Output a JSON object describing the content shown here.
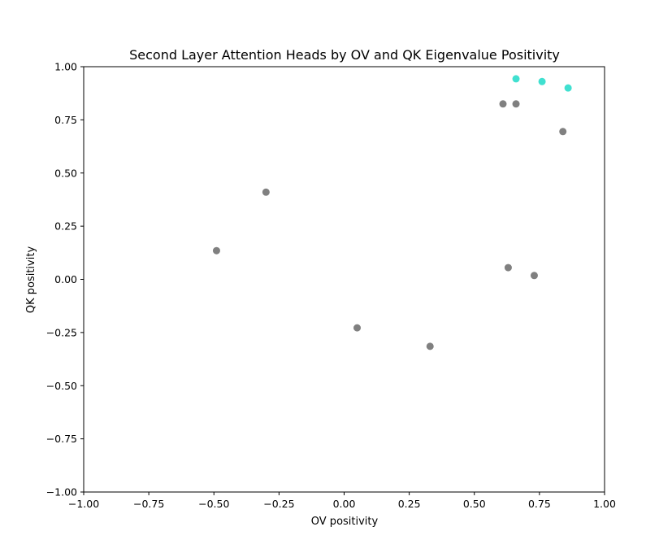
{
  "chart_data": {
    "type": "scatter",
    "title": "Second Layer Attention Heads by OV and QK Eigenvalue Positivity",
    "xlabel": "OV positivity",
    "ylabel": "QK positivity",
    "xlim": [
      -1.0,
      1.0
    ],
    "ylim": [
      -1.0,
      1.0
    ],
    "xticks": [
      "−1.00",
      "−0.75",
      "−0.50",
      "−0.25",
      "0.00",
      "0.25",
      "0.50",
      "0.75",
      "1.00"
    ],
    "yticks": [
      "−1.00",
      "−0.75",
      "−0.50",
      "−0.25",
      "0.00",
      "0.25",
      "0.50",
      "0.75",
      "1.00"
    ],
    "grid": false,
    "colors": {
      "highlight": "#40e0d0",
      "default": "#808080"
    },
    "points": [
      {
        "x": 0.66,
        "y": 0.943,
        "group": "highlight"
      },
      {
        "x": 0.76,
        "y": 0.93,
        "group": "highlight"
      },
      {
        "x": 0.86,
        "y": 0.9,
        "group": "highlight"
      },
      {
        "x": 0.61,
        "y": 0.825,
        "group": "default"
      },
      {
        "x": 0.66,
        "y": 0.825,
        "group": "default"
      },
      {
        "x": 0.84,
        "y": 0.695,
        "group": "default"
      },
      {
        "x": -0.3,
        "y": 0.41,
        "group": "default"
      },
      {
        "x": -0.49,
        "y": 0.135,
        "group": "default"
      },
      {
        "x": 0.63,
        "y": 0.055,
        "group": "default"
      },
      {
        "x": 0.73,
        "y": 0.018,
        "group": "default"
      },
      {
        "x": 0.05,
        "y": -0.228,
        "group": "default"
      },
      {
        "x": 0.33,
        "y": -0.315,
        "group": "default"
      }
    ]
  }
}
